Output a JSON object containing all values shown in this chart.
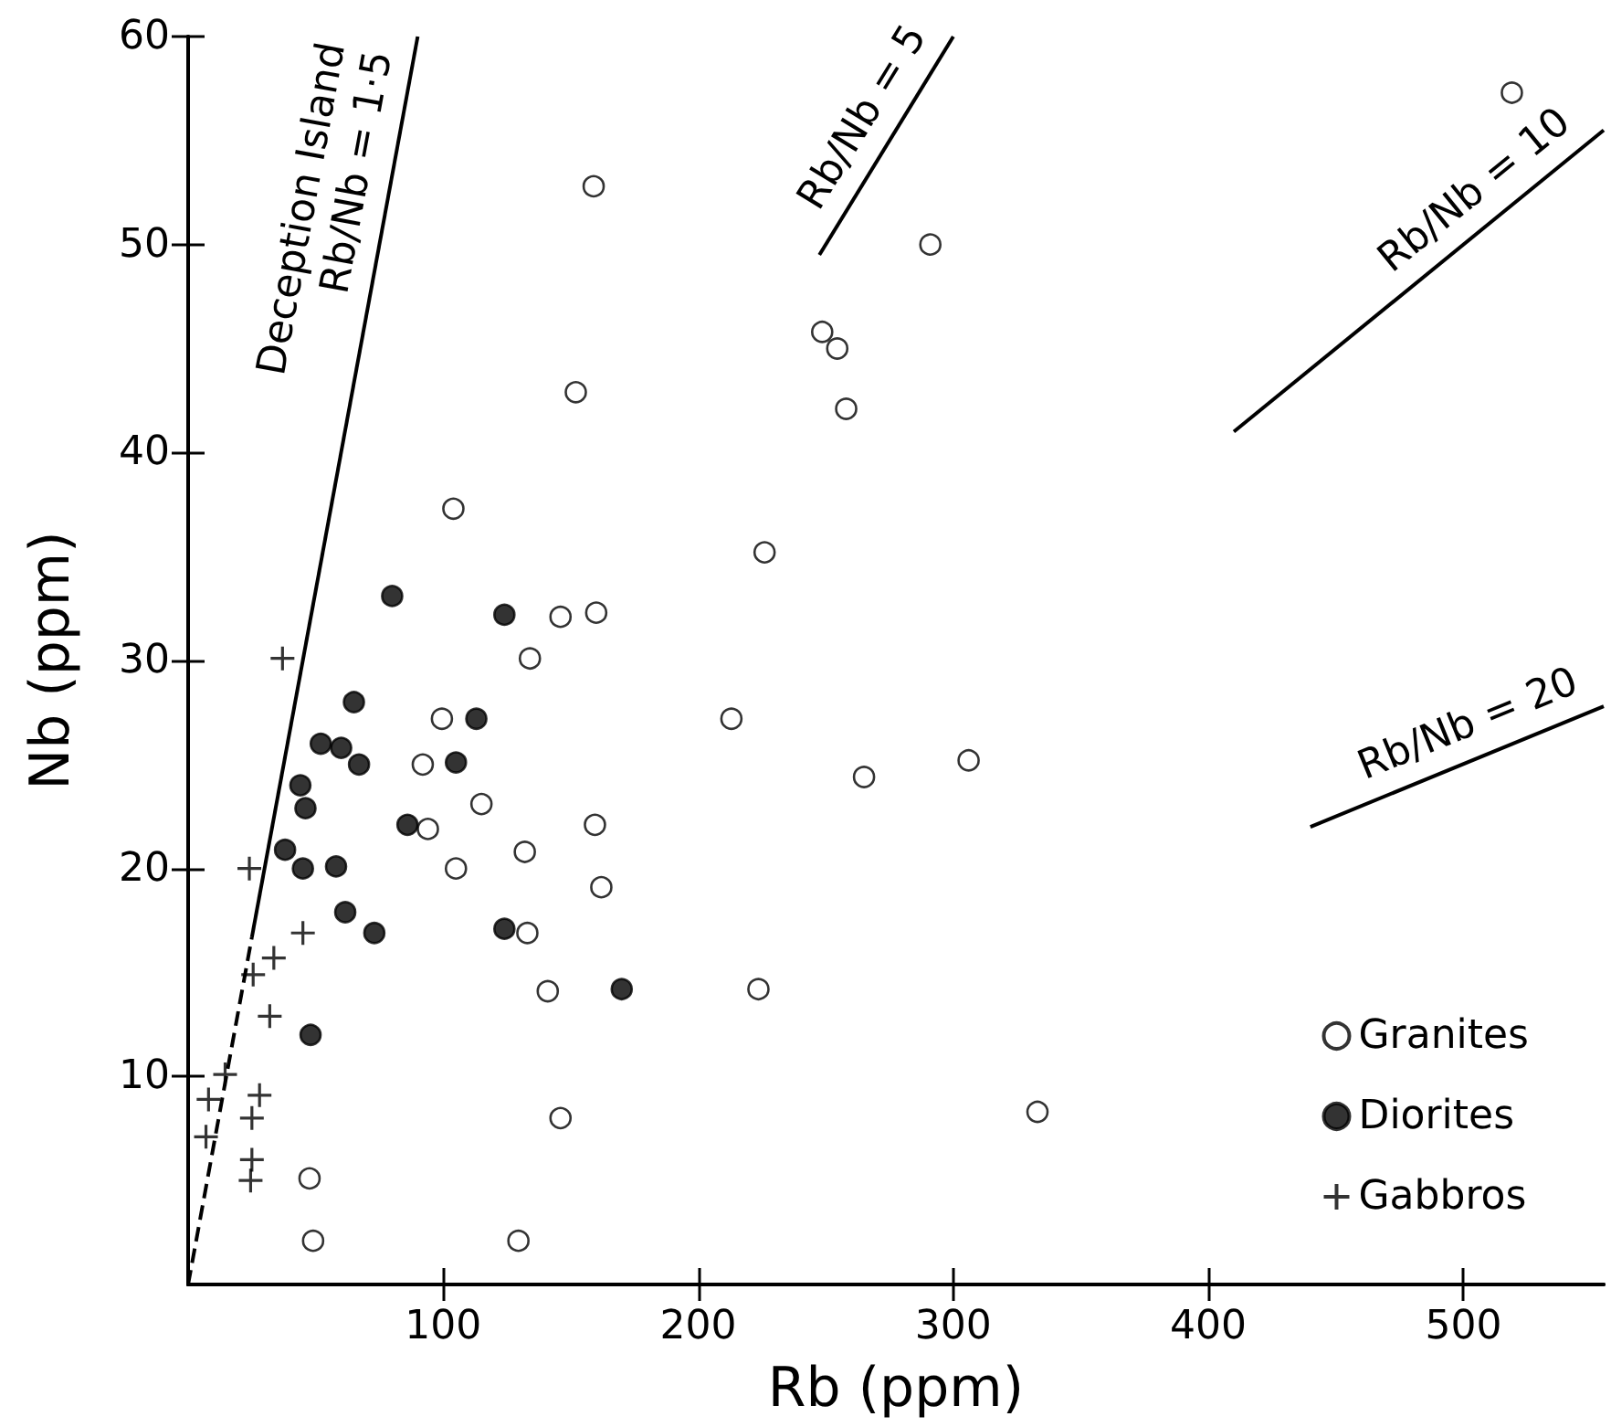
{
  "chart_data": {
    "type": "scatter",
    "xlabel": "Rb (ppm)",
    "ylabel": "Nb (ppm)",
    "xlim": [
      0,
      555
    ],
    "ylim": [
      0,
      60
    ],
    "xticks": [
      100,
      200,
      300,
      400,
      500
    ],
    "yticks": [
      10,
      20,
      30,
      40,
      50,
      60
    ],
    "grid": false,
    "legend": "bottom right",
    "series": [
      {
        "name": "Granites",
        "color": "#ffffff",
        "marker": "circle",
        "x": [
          146,
          160,
          134,
          99.5,
          92,
          115,
          94,
          159.5,
          132,
          105,
          162,
          133,
          141,
          146,
          47.6,
          49,
          129.5,
          159,
          291,
          248.6,
          254.5,
          258,
          152,
          104,
          226,
          519,
          213,
          265,
          306,
          223.6,
          333
        ],
        "values": [
          32.1,
          32.3,
          30.1,
          27.2,
          25,
          23.1,
          21.9,
          22.1,
          20.8,
          20,
          19.1,
          16.9,
          14.1,
          8,
          5.1,
          2.1,
          2.1,
          52.8,
          50,
          45.8,
          45,
          42.1,
          42.9,
          37.3,
          35.2,
          57.3,
          27.2,
          24.4,
          25.2,
          14.2,
          8.3
        ]
      },
      {
        "name": "Diorites",
        "color": "#000000",
        "marker": "circle",
        "x": [
          80,
          124,
          65,
          113,
          52,
          60,
          67,
          105,
          44,
          46,
          86,
          38,
          45,
          58,
          61.6,
          73,
          124,
          170,
          48
        ],
        "values": [
          33.1,
          32.2,
          28,
          27.2,
          26,
          25.8,
          25,
          25.1,
          24,
          22.9,
          22.1,
          20.9,
          20,
          20.1,
          17.9,
          16.9,
          17.1,
          14.2,
          12
        ]
      },
      {
        "name": "Gabbros",
        "color": "#000000",
        "marker": "cross",
        "x": [
          37,
          24,
          45,
          33.6,
          25.5,
          32,
          14.5,
          8,
          28,
          25,
          7,
          25,
          24.5
        ],
        "values": [
          30.1,
          20,
          16.9,
          15.7,
          14.9,
          12.9,
          10.1,
          8.9,
          9.1,
          8,
          7.1,
          6,
          5
        ]
      },
      {
        "type": "line",
        "color": "#000000",
        "line_style": "dashed",
        "marker": "none",
        "x": [
          0,
          25
        ],
        "values": [
          0,
          16.7
        ]
      },
      {
        "name": "Deception Island\nRb/Nb = 1·5",
        "type": "line",
        "color": "#000000",
        "line_style": "solid",
        "marker": "none",
        "x": [
          25,
          90
        ],
        "values": [
          16.7,
          60
        ]
      },
      {
        "name": "Rb/Nb = 5",
        "type": "line",
        "color": "#000000",
        "line_style": "solid",
        "marker": "none",
        "x": [
          247.5,
          300
        ],
        "values": [
          49.5,
          60
        ]
      },
      {
        "name": "Rb/Nb = 10",
        "type": "line",
        "color": "#000000",
        "line_style": "solid",
        "marker": "none",
        "x": [
          410,
          555
        ],
        "values": [
          41,
          55.5
        ]
      },
      {
        "name": "Rb/Nb = 20",
        "type": "line",
        "color": "#000000",
        "line_style": "solid",
        "marker": "none",
        "x": [
          440,
          555
        ],
        "values": [
          22,
          27.8
        ]
      }
    ]
  }
}
